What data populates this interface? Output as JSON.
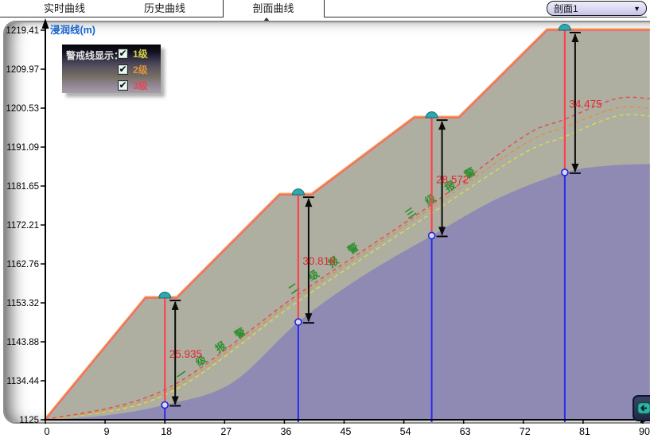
{
  "tabs": [
    {
      "label": "实时曲线",
      "active": false
    },
    {
      "label": "历史曲线",
      "active": false
    },
    {
      "label": "剖面曲线",
      "active": true
    }
  ],
  "profile_select": {
    "value": "剖面1",
    "arrow_icon": "▼"
  },
  "legend": {
    "title": "警戒线显示：",
    "check_icon": "✔",
    "items": [
      {
        "label": "1级",
        "checked": true,
        "color": "#d4d44a"
      },
      {
        "label": "2级",
        "checked": true,
        "color": "#dd953e"
      },
      {
        "label": "3级",
        "checked": true,
        "color": "#e34855"
      }
    ]
  },
  "chart_data": {
    "type": "area",
    "title": "",
    "ylabel": "浸润线(m)",
    "ylabel_color": "#1563cd",
    "x_ticks": [
      0,
      9,
      18,
      27,
      36,
      45,
      54,
      63,
      72,
      81,
      90
    ],
    "y_ticks": [
      1125,
      1134.44,
      1143.88,
      1153.32,
      1162.76,
      1172.21,
      1181.65,
      1191.09,
      1200.53,
      1209.97,
      1219.41
    ],
    "xlim": [
      0,
      91.05
    ],
    "ylim": [
      1125,
      1219.41
    ],
    "grid": false,
    "colors": {
      "dam_fill": "#aeafa1",
      "phreatic_fill": "#8f8ab4",
      "outline_pink": "#f8666e",
      "outline_orange": "#efa24b",
      "measure_line": "#ff4050",
      "datum_line": "#2a2af0",
      "circle_stroke": "#2222e0",
      "circle_fill": "#d8d8f6",
      "dome_fill": "#2fa8ad",
      "dome_stroke": "#0f6f77",
      "arrow": "#0a0a0a",
      "value_text": "#e02830",
      "alarm_text": "#2f8f2f"
    },
    "dam_profile": {
      "points": [
        [
          0,
          1125
        ],
        [
          15.1,
          1154.5
        ],
        [
          19.8,
          1154.5
        ],
        [
          35.3,
          1179.5
        ],
        [
          40.1,
          1179.5
        ],
        [
          55.6,
          1198.2
        ],
        [
          62.3,
          1198.2
        ],
        [
          75.6,
          1219.41
        ],
        [
          91.05,
          1219.41
        ]
      ]
    },
    "phreatic_area": {
      "points": [
        [
          0,
          1125
        ],
        [
          9,
          1126
        ],
        [
          18,
          1128.6
        ],
        [
          28,
          1133.8
        ],
        [
          38.1,
          1148.7
        ],
        [
          48,
          1160
        ],
        [
          58.2,
          1169.6
        ],
        [
          68,
          1178.5
        ],
        [
          78.2,
          1184.9
        ],
        [
          85,
          1186.6
        ],
        [
          91.05,
          1187
        ]
      ]
    },
    "warning_lines": [
      {
        "name": "1级",
        "color": "#d8d855",
        "points": [
          [
            0,
            1125
          ],
          [
            18,
            1131.0
          ],
          [
            38.1,
            1153.7
          ],
          [
            58.2,
            1175.1
          ],
          [
            72,
            1189.5
          ],
          [
            78.2,
            1193.6
          ],
          [
            86,
            1198.6
          ],
          [
            91.05,
            1198.6
          ]
        ]
      },
      {
        "name": "2级",
        "color": "#e09040",
        "points": [
          [
            0,
            1125
          ],
          [
            18,
            1131.6
          ],
          [
            38.1,
            1154.7
          ],
          [
            58.2,
            1176.4
          ],
          [
            72,
            1191.7
          ],
          [
            78.2,
            1195.9
          ],
          [
            86,
            1200.5
          ],
          [
            91.05,
            1200.5
          ]
        ]
      },
      {
        "name": "3级",
        "color": "#e05050",
        "points": [
          [
            0,
            1125
          ],
          [
            18,
            1132.3
          ],
          [
            38.1,
            1155.4
          ],
          [
            58.2,
            1177.2
          ],
          [
            72,
            1193.6
          ],
          [
            78.2,
            1197.8
          ],
          [
            86,
            1202.8
          ],
          [
            91.05,
            1202.8
          ]
        ]
      }
    ],
    "measurements": [
      {
        "x": 18.0,
        "top": 1154.5,
        "bottom": 1128.57,
        "value": "25.935"
      },
      {
        "x": 38.1,
        "top": 1179.5,
        "bottom": 1148.68,
        "value": "30.818"
      },
      {
        "x": 58.2,
        "top": 1198.2,
        "bottom": 1169.63,
        "value": "28.572"
      },
      {
        "x": 78.25,
        "top": 1219.41,
        "bottom": 1184.94,
        "value": "34.475"
      }
    ],
    "alarm_labels": [
      {
        "text": "一级报警",
        "x": 19.9,
        "y": 1135.2,
        "angle": -35
      },
      {
        "text": "二级报警",
        "x": 36.8,
        "y": 1156.0,
        "angle": -34
      },
      {
        "text": "三级报警",
        "x": 54.4,
        "y": 1174.3,
        "angle": -34
      }
    ]
  },
  "corner_button": {
    "icon": "restore-view"
  }
}
